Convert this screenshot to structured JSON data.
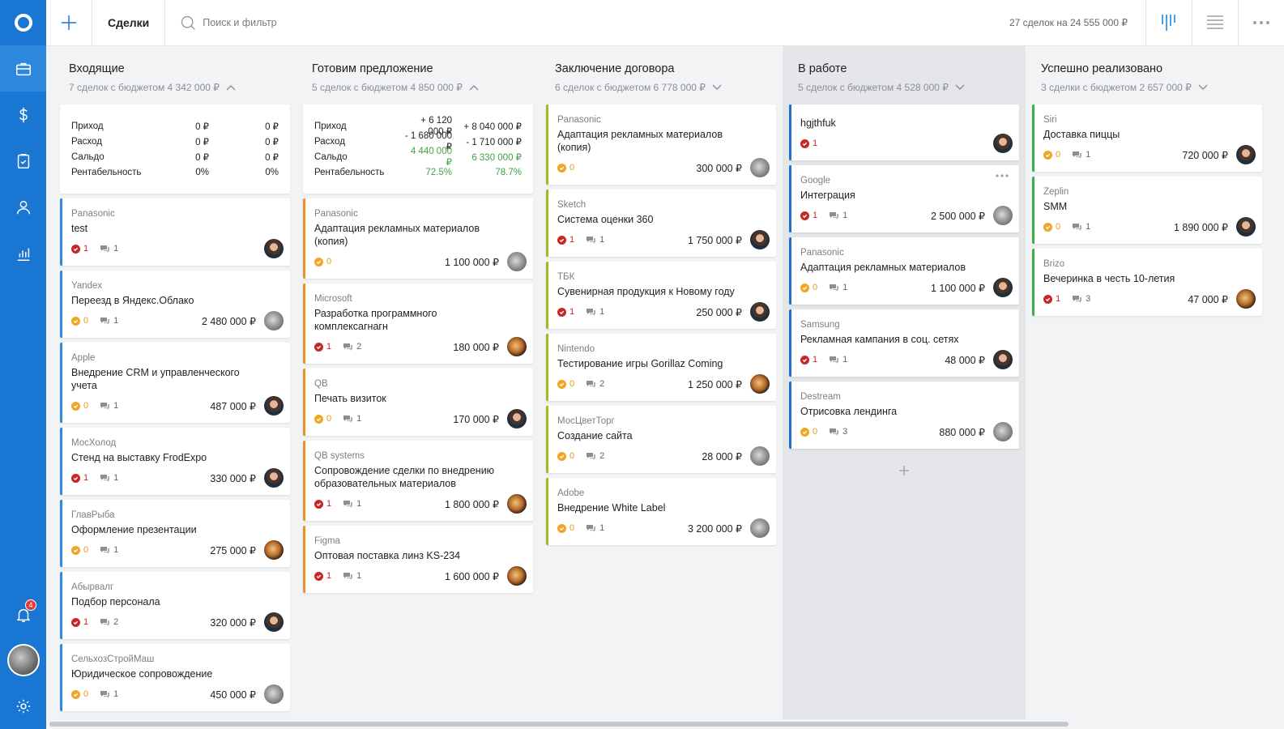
{
  "topbar": {
    "title": "Сделки",
    "search_placeholder": "Поиск и фильтр",
    "summary": "27 сделок на 24 555 000 ₽"
  },
  "sidebar": {
    "items": [
      "briefcase-icon",
      "dollar-icon",
      "clipboard-icon",
      "person-icon",
      "chart-icon"
    ],
    "notification_count": "4"
  },
  "colors": {
    "sidebar": "#1976d2",
    "task_overdue": "#c62828",
    "task_pending": "#f0a623"
  },
  "columns": [
    {
      "title": "Входящие",
      "subtitle": "7 сделок с бюджетом 4 342 000 ₽",
      "expanded": true,
      "finance": [
        {
          "k": "Приход",
          "a": "0 ₽",
          "b": "0 ₽"
        },
        {
          "k": "Расход",
          "a": "0 ₽",
          "b": "0 ₽"
        },
        {
          "k": "Сальдо",
          "a": "0 ₽",
          "b": "0 ₽"
        },
        {
          "k": "Рентабельность",
          "a": "0%",
          "b": "0%"
        }
      ],
      "cards": [
        {
          "company": "Panasonic",
          "name": "test",
          "task": "1",
          "task_type": "red",
          "comments": "1",
          "amount": "",
          "avatar": "man"
        },
        {
          "company": "Yandex",
          "name": "Переезд в Яндекс.Облако",
          "task": "0",
          "task_type": "orange",
          "comments": "1",
          "amount": "2 480 000 ₽",
          "avatar": "cat"
        },
        {
          "company": "Apple",
          "name": "Внедрение CRM и управленческого учета",
          "task": "0",
          "task_type": "orange",
          "comments": "1",
          "amount": "487 000 ₽",
          "avatar": "man"
        },
        {
          "company": "МосХолод",
          "name": "Стенд на выставку FrodExpo",
          "task": "1",
          "task_type": "red",
          "comments": "1",
          "amount": "330 000 ₽",
          "avatar": "man"
        },
        {
          "company": "ГлавРыба",
          "name": "Оформление презентации",
          "task": "0",
          "task_type": "orange",
          "comments": "1",
          "amount": "275 000 ₽",
          "avatar": "tiger"
        },
        {
          "company": "Абырвалг",
          "name": "Подбор персонала",
          "task": "1",
          "task_type": "red",
          "comments": "2",
          "amount": "320 000 ₽",
          "avatar": "man"
        },
        {
          "company": "СельхозСтройМаш",
          "name": "Юридическое сопровождение",
          "task": "0",
          "task_type": "orange",
          "comments": "1",
          "amount": "450 000 ₽",
          "avatar": "cat"
        }
      ]
    },
    {
      "title": "Готовим предложение",
      "subtitle": "5 сделок с бюджетом 4 850 000 ₽",
      "expanded": true,
      "finance": [
        {
          "k": "Приход",
          "a": "+ 6 120 000 ₽",
          "b": "+ 8 040 000 ₽"
        },
        {
          "k": "Расход",
          "a": "- 1 680 000 ₽",
          "b": "- 1 710 000 ₽"
        },
        {
          "k": "Сальдо",
          "a": "4 440 000 ₽",
          "b": "6 330 000 ₽",
          "green": true
        },
        {
          "k": "Рентабельность",
          "a": "72.5%",
          "b": "78.7%",
          "green": true
        }
      ],
      "cards": [
        {
          "company": "Panasonic",
          "name": "Адаптация рекламных материалов (копия)",
          "task": "0",
          "task_type": "orange",
          "comments": "",
          "amount": "1 100 000 ₽",
          "avatar": "cat"
        },
        {
          "company": "Microsoft",
          "name": "Разработка программного комплексагнагн",
          "task": "1",
          "task_type": "red",
          "comments": "2",
          "amount": "180 000 ₽",
          "avatar": "tiger"
        },
        {
          "company": "QB",
          "name": "Печать визиток",
          "task": "0",
          "task_type": "orange",
          "comments": "1",
          "amount": "170 000 ₽",
          "avatar": "man"
        },
        {
          "company": "QB systems",
          "name": "Сопровождение сделки по внедрению образовательных материалов",
          "task": "1",
          "task_type": "red",
          "comments": "1",
          "amount": "1 800 000 ₽",
          "avatar": "tiger"
        },
        {
          "company": "Figma",
          "name": "Оптовая поставка линз KS-234",
          "task": "1",
          "task_type": "red",
          "comments": "1",
          "amount": "1 600 000 ₽",
          "avatar": "tiger"
        }
      ]
    },
    {
      "title": "Заключение договора",
      "subtitle": "6 сделок с бюджетом 6 778 000 ₽",
      "expanded": false,
      "cards": [
        {
          "company": "Panasonic",
          "name": "Адаптация рекламных материалов (копия)",
          "task": "0",
          "task_type": "orange",
          "comments": "",
          "amount": "300 000 ₽",
          "avatar": "cat"
        },
        {
          "company": "Sketch",
          "name": "Система оценки 360",
          "task": "1",
          "task_type": "red",
          "comments": "1",
          "amount": "1 750 000 ₽",
          "avatar": "man"
        },
        {
          "company": "ТБК",
          "name": "Сувенирная продукция к Новому году",
          "task": "1",
          "task_type": "red",
          "comments": "1",
          "amount": "250 000 ₽",
          "avatar": "man"
        },
        {
          "company": "Nintendo",
          "name": "Тестирование игры Gorillaz Coming",
          "task": "0",
          "task_type": "orange",
          "comments": "2",
          "amount": "1 250 000 ₽",
          "avatar": "tiger"
        },
        {
          "company": "МосЦветТорг",
          "name": "Создание сайта",
          "task": "0",
          "task_type": "orange",
          "comments": "2",
          "amount": "28 000 ₽",
          "avatar": "cat"
        },
        {
          "company": "Adobe",
          "name": "Внедрение White Label",
          "task": "0",
          "task_type": "orange",
          "comments": "1",
          "amount": "3 200 000 ₽",
          "avatar": "cat"
        }
      ]
    },
    {
      "title": "В работе",
      "subtitle": "5 сделок с бюджетом 4 528 000 ₽",
      "expanded": false,
      "highlight": true,
      "cards": [
        {
          "company": "",
          "name": "hgjthfuk",
          "task": "1",
          "task_type": "red",
          "comments": "",
          "amount": "",
          "avatar": "man"
        },
        {
          "company": "Google",
          "name": "Интеграция",
          "task": "1",
          "task_type": "red",
          "comments": "1",
          "amount": "2 500 000 ₽",
          "avatar": "cat",
          "more": true
        },
        {
          "company": "Panasonic",
          "name": "Адаптация рекламных материалов",
          "task": "0",
          "task_type": "orange",
          "comments": "1",
          "amount": "1 100 000 ₽",
          "avatar": "man"
        },
        {
          "company": "Samsung",
          "name": "Рекламная кампания в соц. сетях",
          "task": "1",
          "task_type": "red",
          "comments": "1",
          "amount": "48 000 ₽",
          "avatar": "man"
        },
        {
          "company": "Destream",
          "name": "Отрисовка лендинга",
          "task": "0",
          "task_type": "orange",
          "comments": "3",
          "amount": "880 000 ₽",
          "avatar": "cat"
        }
      ]
    },
    {
      "title": "Успешно реализовано",
      "subtitle": "3 сделки с бюджетом 2 657 000 ₽",
      "expanded": false,
      "cards": [
        {
          "company": "Siri",
          "name": "Доставка пиццы",
          "task": "0",
          "task_type": "orange",
          "comments": "1",
          "amount": "720 000 ₽",
          "avatar": "man"
        },
        {
          "company": "Zeplin",
          "name": "SMM",
          "task": "0",
          "task_type": "orange",
          "comments": "1",
          "amount": "1 890 000 ₽",
          "avatar": "man"
        },
        {
          "company": "Brizo",
          "name": "Вечеринка в честь 10-летия",
          "task": "1",
          "task_type": "red",
          "comments": "3",
          "amount": "47 000 ₽",
          "avatar": "tiger"
        }
      ]
    }
  ]
}
